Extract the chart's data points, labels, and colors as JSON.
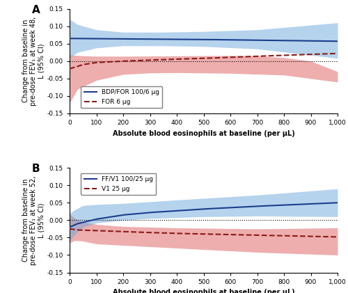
{
  "panel_A": {
    "label": "A",
    "xlabel": "Absolute blood eosinophils at baseline (per μL)",
    "ylabel": "Change from baseline in\npre-dose FEV₁ at week 48,\nL (95% CI)",
    "xlim": [
      0,
      1000
    ],
    "ylim": [
      -0.15,
      0.15
    ],
    "yticks": [
      -0.15,
      -0.1,
      -0.05,
      0.0,
      0.05,
      0.1,
      0.15
    ],
    "xticks": [
      0,
      100,
      200,
      300,
      400,
      500,
      600,
      700,
      800,
      900,
      1000
    ],
    "blue_line_color": "#1c3d8c",
    "blue_line_label": "BDP/FOR 100/6 μg",
    "red_line_color": "#8b1a1a",
    "red_line_label": "FOR 6 μg",
    "blue_ci_color": "#6fa8dc",
    "blue_ci_alpha": 0.5,
    "red_ci_color": "#e06c6c",
    "red_ci_alpha": 0.55
  },
  "panel_B": {
    "label": "B",
    "xlabel": "Absolute blood eosinophils at baseline (per μL)",
    "ylabel": "Change from baseline in\npre-dose FEV₁ at week 52,\nL (95% CI)",
    "xlim": [
      0,
      1000
    ],
    "ylim": [
      -0.15,
      0.15
    ],
    "yticks": [
      -0.15,
      -0.1,
      -0.05,
      0.0,
      0.05,
      0.1,
      0.15
    ],
    "xticks": [
      0,
      100,
      200,
      300,
      400,
      500,
      600,
      700,
      800,
      900,
      1000
    ],
    "blue_line_color": "#1c3d8c",
    "blue_line_label": "FF/V1 100/25 μg",
    "red_line_color": "#8b1a1a",
    "red_line_label": "V1 25 μg",
    "blue_ci_color": "#6fa8dc",
    "blue_ci_alpha": 0.5,
    "red_ci_color": "#e06c6c",
    "red_ci_alpha": 0.55
  }
}
